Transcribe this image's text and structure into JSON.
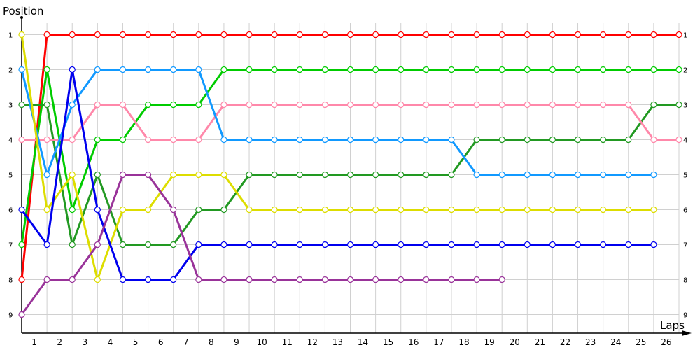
{
  "chart_data": {
    "type": "line",
    "title": "",
    "xlabel": "Laps",
    "ylabel": "Position",
    "x_tick_labels": [
      "1",
      "2",
      "3",
      "4",
      "5",
      "6",
      "7",
      "8",
      "9",
      "10",
      "11",
      "12",
      "13",
      "14",
      "15",
      "16",
      "17",
      "18",
      "19",
      "20",
      "21",
      "22",
      "23",
      "24",
      "25",
      "26"
    ],
    "y_tick_labels": [
      "1",
      "2",
      "3",
      "4",
      "5",
      "6",
      "7",
      "8",
      "9"
    ],
    "xlim": [
      0,
      26
    ],
    "ylim": [
      9.5,
      0.5
    ],
    "y_inverted": true,
    "grid": true,
    "marker": "hollow-circle",
    "series": [
      {
        "color": "#ff0000",
        "values": [
          8,
          1,
          1,
          1,
          1,
          1,
          1,
          1,
          1,
          1,
          1,
          1,
          1,
          1,
          1,
          1,
          1,
          1,
          1,
          1,
          1,
          1,
          1,
          1,
          1,
          1,
          1
        ]
      },
      {
        "color": "#00cc00",
        "values": [
          7,
          2,
          6,
          4,
          4,
          3,
          3,
          3,
          2,
          2,
          2,
          2,
          2,
          2,
          2,
          2,
          2,
          2,
          2,
          2,
          2,
          2,
          2,
          2,
          2,
          2,
          2
        ]
      },
      {
        "color": "#229922",
        "values": [
          3,
          3,
          7,
          5,
          7,
          7,
          7,
          6,
          6,
          5,
          5,
          5,
          5,
          5,
          5,
          5,
          5,
          5,
          4,
          4,
          4,
          4,
          4,
          4,
          4,
          3,
          3
        ]
      },
      {
        "color": "#ff88aa",
        "values": [
          4,
          4,
          4,
          3,
          3,
          4,
          4,
          4,
          3,
          3,
          3,
          3,
          3,
          3,
          3,
          3,
          3,
          3,
          3,
          3,
          3,
          3,
          3,
          3,
          3,
          4,
          4
        ]
      },
      {
        "color": "#1199ff",
        "values": [
          2,
          5,
          3,
          2,
          2,
          2,
          2,
          2,
          4,
          4,
          4,
          4,
          4,
          4,
          4,
          4,
          4,
          4,
          5,
          5,
          5,
          5,
          5,
          5,
          5,
          5
        ]
      },
      {
        "color": "#dddd00",
        "values": [
          1,
          6,
          5,
          8,
          6,
          6,
          5,
          5,
          5,
          6,
          6,
          6,
          6,
          6,
          6,
          6,
          6,
          6,
          6,
          6,
          6,
          6,
          6,
          6,
          6,
          6
        ]
      },
      {
        "color": "#0000ee",
        "values": [
          6,
          7,
          2,
          6,
          8,
          8,
          8,
          7,
          7,
          7,
          7,
          7,
          7,
          7,
          7,
          7,
          7,
          7,
          7,
          7,
          7,
          7,
          7,
          7,
          7,
          7
        ]
      },
      {
        "color": "#993399",
        "values": [
          9,
          8,
          8,
          7,
          5,
          5,
          6,
          8,
          8,
          8,
          8,
          8,
          8,
          8,
          8,
          8,
          8,
          8,
          8,
          8
        ]
      }
    ]
  }
}
